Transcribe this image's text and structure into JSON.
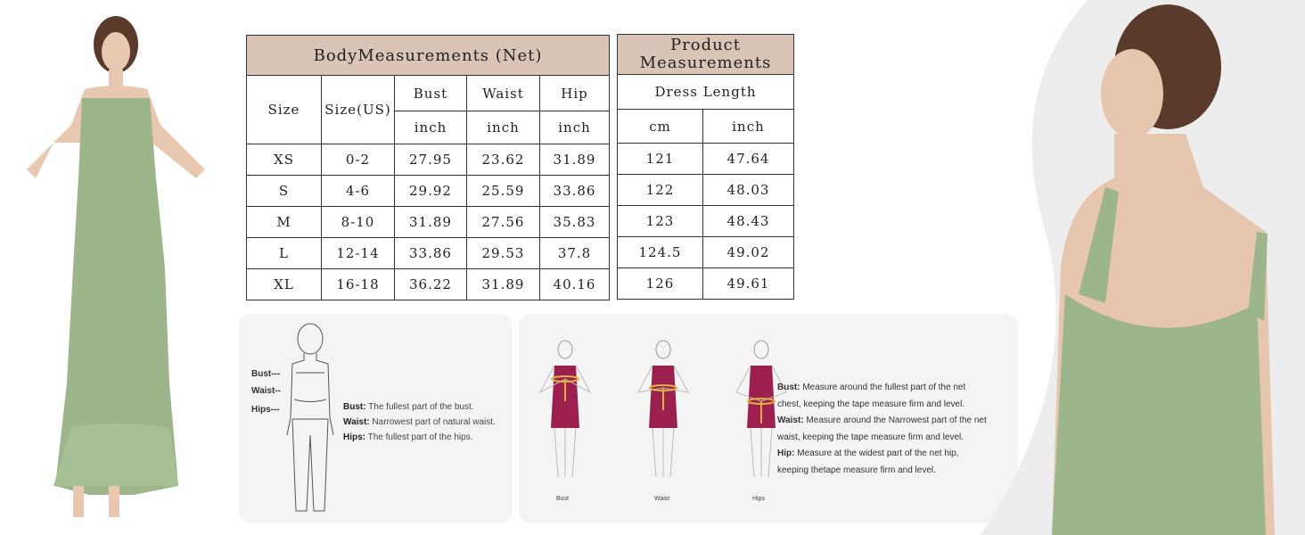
{
  "body_table": {
    "title": "BodyMeasurements (Net)",
    "headers": {
      "size": "Size",
      "size_us": "Size(US)",
      "bust": "Bust",
      "waist": "Waist",
      "hip": "Hip",
      "unit": "inch"
    },
    "rows": [
      {
        "size": "XS",
        "size_us": "0-2",
        "bust": "27.95",
        "waist": "23.62",
        "hip": "31.89"
      },
      {
        "size": "S",
        "size_us": "4-6",
        "bust": "29.92",
        "waist": "25.59",
        "hip": "33.86"
      },
      {
        "size": "M",
        "size_us": "8-10",
        "bust": "31.89",
        "waist": "27.56",
        "hip": "35.83"
      },
      {
        "size": "L",
        "size_us": "12-14",
        "bust": "33.86",
        "waist": "29.53",
        "hip": "37.8"
      },
      {
        "size": "XL",
        "size_us": "16-18",
        "bust": "36.22",
        "waist": "31.89",
        "hip": "40.16"
      }
    ]
  },
  "product_table": {
    "title": "Product Measurements",
    "dress_length": "Dress Length",
    "unit_cm": "cm",
    "unit_inch": "inch",
    "rows": [
      {
        "cm": "121",
        "inch": "47.64"
      },
      {
        "cm": "122",
        "inch": "48.03"
      },
      {
        "cm": "123",
        "inch": "48.43"
      },
      {
        "cm": "124.5",
        "inch": "49.02"
      },
      {
        "cm": "126",
        "inch": "49.61"
      }
    ]
  },
  "guide_left": {
    "side_labels": [
      "Bust---",
      "Waist--",
      "Hips---"
    ],
    "items": [
      {
        "term": "Bust:",
        "text": "The fullest part of the bust."
      },
      {
        "term": "Waist:",
        "text": "Narrowest part of natural waist."
      },
      {
        "term": "Hips:",
        "text": "The fullest part of the hips."
      }
    ]
  },
  "guide_right": {
    "figure_labels": [
      "Bust",
      "Waist",
      "Hips"
    ],
    "items": [
      {
        "term": "Bust:",
        "text": "Measure around the fullest part of the net chest, keeping the tape  measure firm and level."
      },
      {
        "term": "Waist:",
        "text": "Measure around the Narrowest part of the net waist, keeping the tape  measure firm and level."
      },
      {
        "term": "Hip:",
        "text": "Measure at the widest part of the net hip, keeping thetape  measure firm and level."
      }
    ]
  },
  "colors": {
    "header_bg": "#d9c4b5",
    "dress_green": "#9cb58a",
    "figure_dress": "#9b1f4f",
    "tape": "#e0b040"
  }
}
